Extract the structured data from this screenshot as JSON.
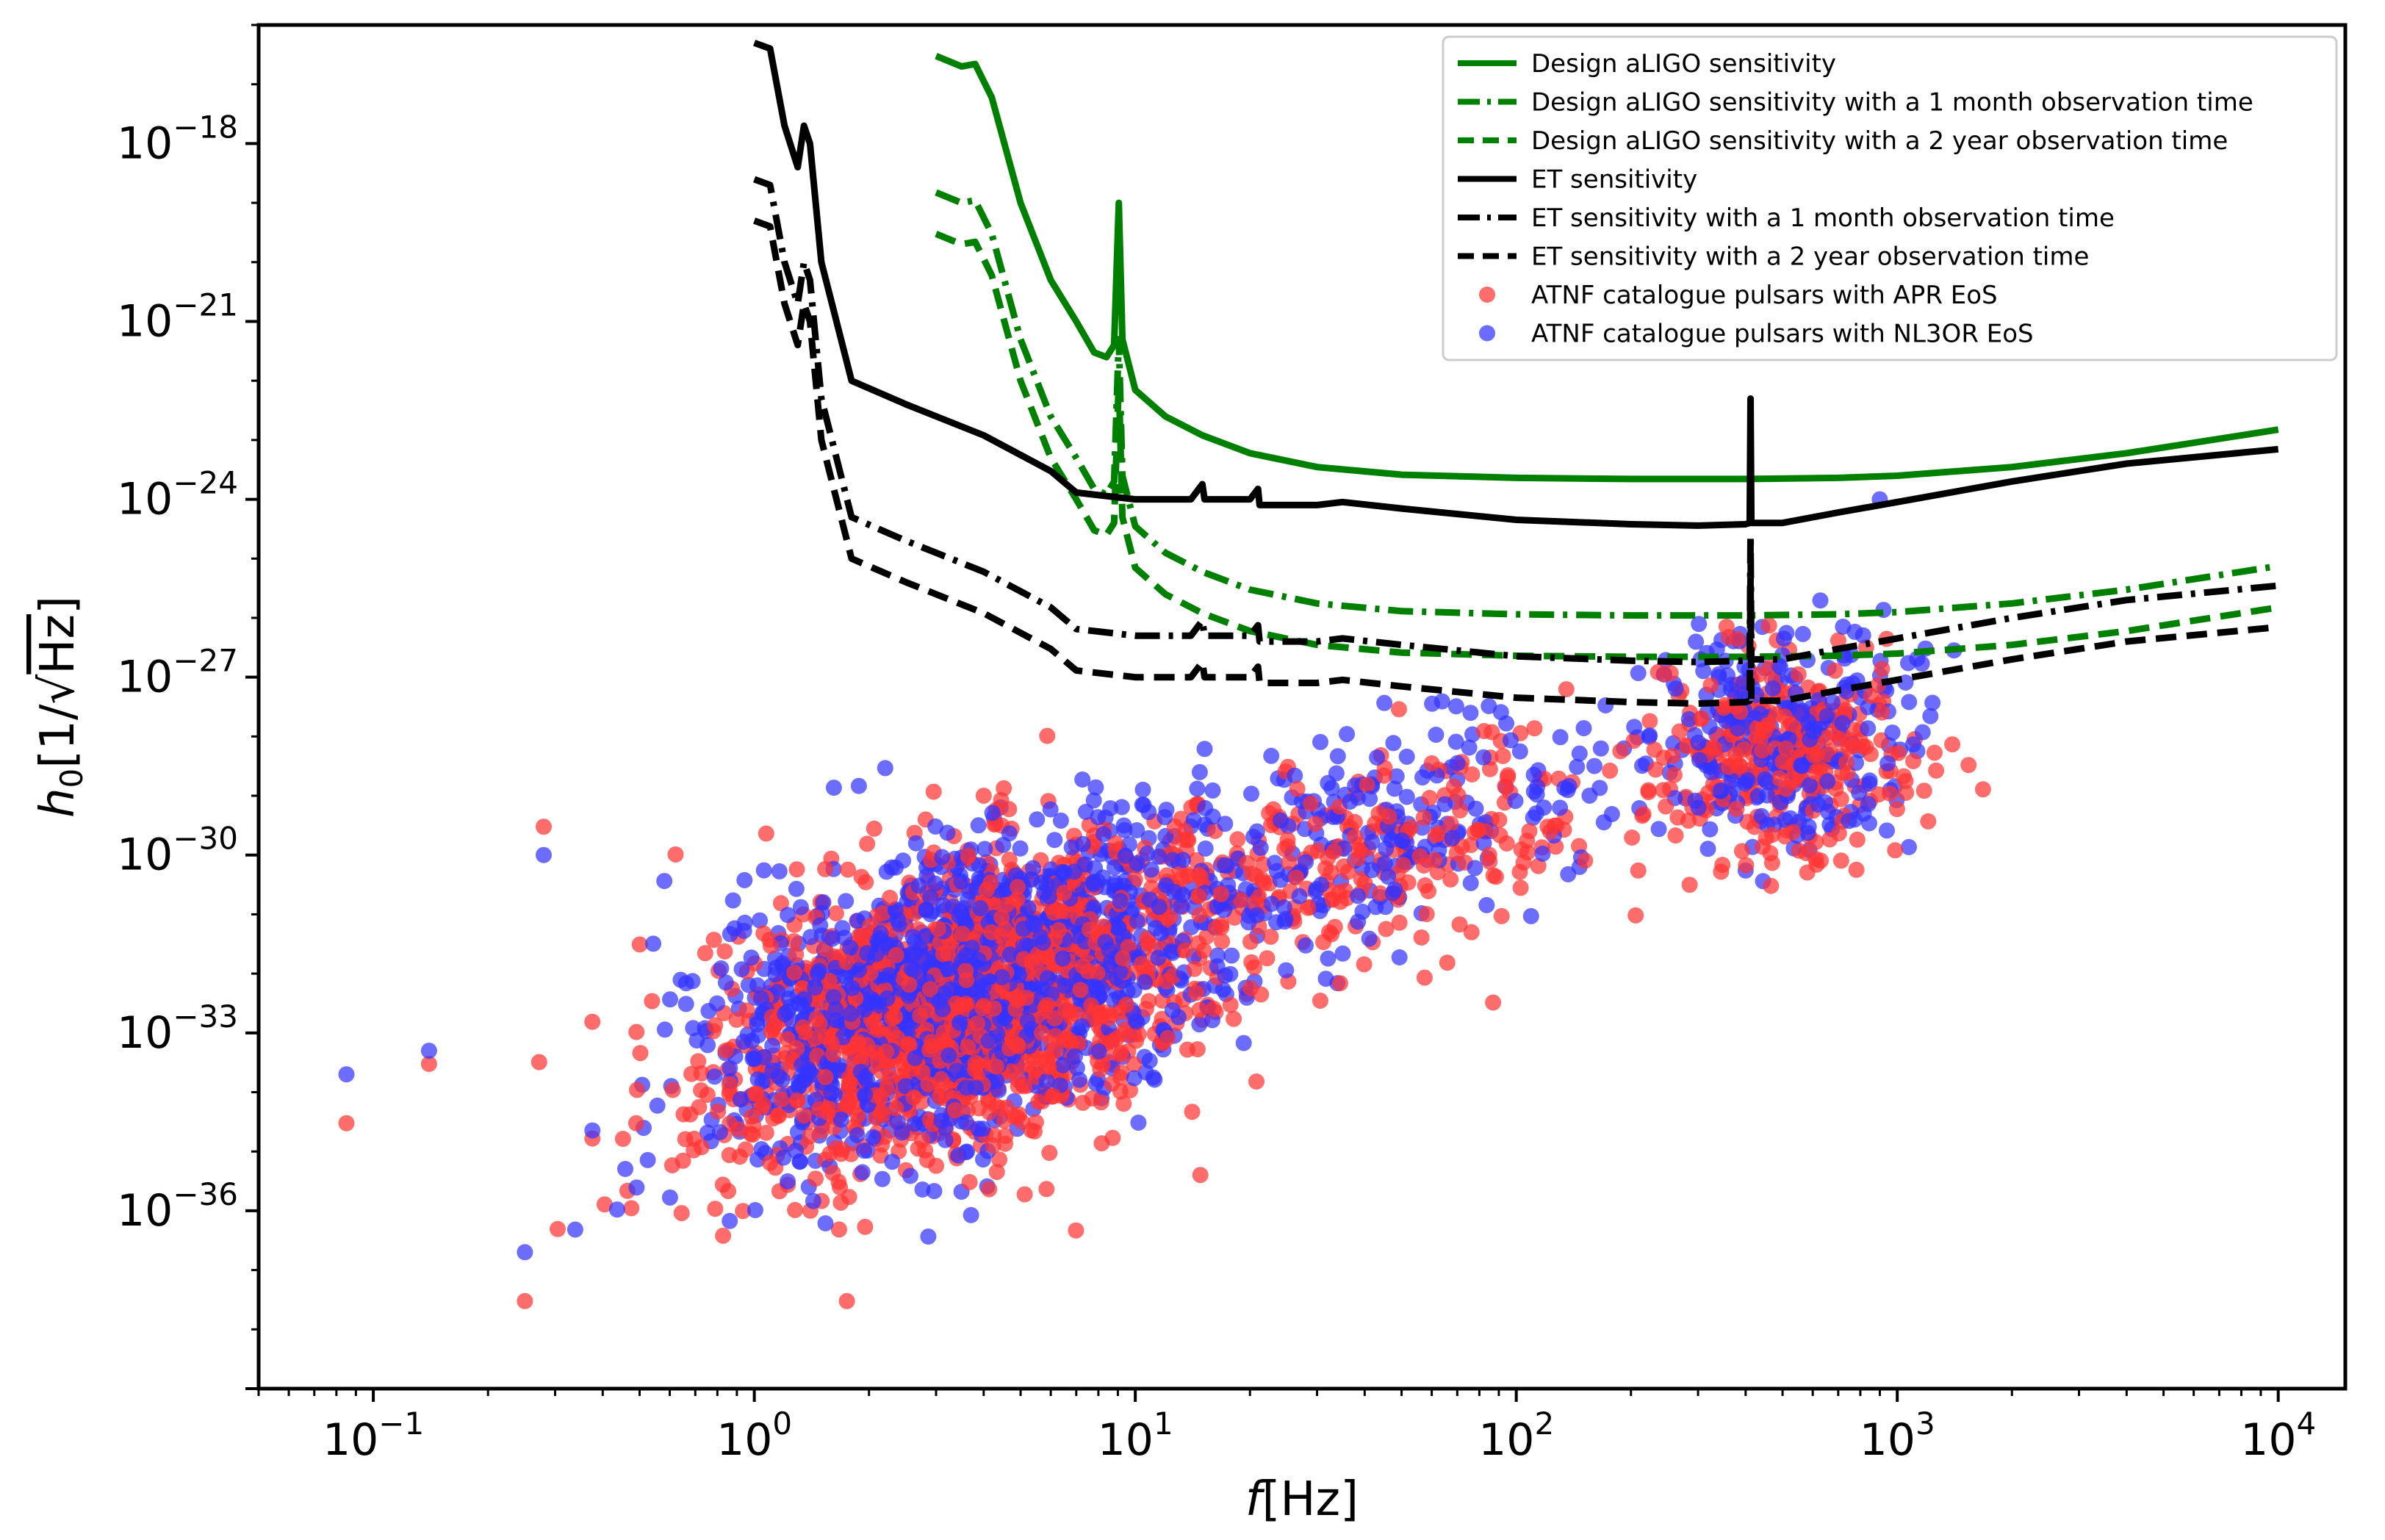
{
  "chart_data": {
    "type": "scatter",
    "xscale": "log",
    "yscale": "log",
    "xlim": [
      0.05,
      15000
    ],
    "ylim": [
      1e-39,
      1e-16
    ],
    "xlabel": {
      "main": "f",
      "unit": "[Hz]"
    },
    "ylabel": {
      "main": "h",
      "sub": "0",
      "pre": "[1/",
      "radicand": "Hz",
      "post": "]"
    },
    "xticks": [
      {
        "value": 0.1,
        "base": "10",
        "exp": "−1"
      },
      {
        "value": 1,
        "base": "10",
        "exp": "0"
      },
      {
        "value": 10,
        "base": "10",
        "exp": "1"
      },
      {
        "value": 100,
        "base": "10",
        "exp": "2"
      },
      {
        "value": 1000,
        "base": "10",
        "exp": "3"
      },
      {
        "value": 10000,
        "base": "10",
        "exp": "4"
      }
    ],
    "yticks": [
      {
        "value": 1e-18,
        "base": "10",
        "exp": "−18"
      },
      {
        "value": 1e-21,
        "base": "10",
        "exp": "−21"
      },
      {
        "value": 1e-24,
        "base": "10",
        "exp": "−24"
      },
      {
        "value": 1e-27,
        "base": "10",
        "exp": "−27"
      },
      {
        "value": 1e-30,
        "base": "10",
        "exp": "−30"
      },
      {
        "value": 1e-33,
        "base": "10",
        "exp": "−33"
      },
      {
        "value": 1e-36,
        "base": "10",
        "exp": "−36"
      }
    ],
    "legend_position": "top-right",
    "series": [
      {
        "name": "Design aLIGO sensitivity",
        "kind": "line",
        "color": "#008000",
        "dash": "solid",
        "points": [
          [
            3,
            3e-17
          ],
          [
            3.5,
            2e-17
          ],
          [
            3.8,
            2.2e-17
          ],
          [
            4.2,
            6e-18
          ],
          [
            5,
            1e-19
          ],
          [
            6,
            5e-21
          ],
          [
            7,
            1e-21
          ],
          [
            7.8,
            3e-22
          ],
          [
            8.4,
            2.5e-22
          ],
          [
            8.8,
            4e-22
          ],
          [
            9.05,
            1e-19
          ],
          [
            9.25,
            5e-22
          ],
          [
            10,
            7e-23
          ],
          [
            12,
            2.5e-23
          ],
          [
            15,
            1.2e-23
          ],
          [
            20,
            6e-24
          ],
          [
            30,
            3.5e-24
          ],
          [
            50,
            2.6e-24
          ],
          [
            100,
            2.3e-24
          ],
          [
            200,
            2.2e-24
          ],
          [
            400,
            2.2e-24
          ],
          [
            700,
            2.3e-24
          ],
          [
            1000,
            2.5e-24
          ],
          [
            2000,
            3.5e-24
          ],
          [
            4000,
            6e-24
          ],
          [
            10000,
            1.5e-23
          ]
        ]
      },
      {
        "name": "Design aLIGO sensitivity with a 1 month observation time",
        "kind": "line",
        "color": "#008000",
        "dash": "dashdot",
        "points": [
          [
            3,
            1.5e-19
          ],
          [
            3.5,
            1e-19
          ],
          [
            3.8,
            1.1e-19
          ],
          [
            4.2,
            3e-20
          ],
          [
            5,
            5e-22
          ],
          [
            6,
            2.5e-23
          ],
          [
            7,
            5e-24
          ],
          [
            7.8,
            1.5e-24
          ],
          [
            8.4,
            1.2e-24
          ],
          [
            8.8,
            2e-24
          ],
          [
            9.05,
            5e-22
          ],
          [
            9.25,
            2.5e-24
          ],
          [
            10,
            3.5e-25
          ],
          [
            12,
            1.25e-25
          ],
          [
            15,
            6e-26
          ],
          [
            20,
            3e-26
          ],
          [
            30,
            1.75e-26
          ],
          [
            50,
            1.3e-26
          ],
          [
            100,
            1.15e-26
          ],
          [
            200,
            1.1e-26
          ],
          [
            400,
            1.1e-26
          ],
          [
            700,
            1.15e-26
          ],
          [
            1000,
            1.25e-26
          ],
          [
            2000,
            1.75e-26
          ],
          [
            4000,
            3e-26
          ],
          [
            10000,
            7.5e-26
          ]
        ]
      },
      {
        "name": "Design aLIGO sensitivity with a 2 year observation time",
        "kind": "line",
        "color": "#008000",
        "dash": "dash",
        "points": [
          [
            3,
            3e-20
          ],
          [
            3.5,
            2e-20
          ],
          [
            3.8,
            2.2e-20
          ],
          [
            4.2,
            6e-21
          ],
          [
            5,
            1e-22
          ],
          [
            6,
            5e-24
          ],
          [
            7,
            1e-24
          ],
          [
            7.8,
            3e-25
          ],
          [
            8.4,
            2.5e-25
          ],
          [
            8.8,
            4e-25
          ],
          [
            9.05,
            1e-22
          ],
          [
            9.25,
            5e-25
          ],
          [
            10,
            7e-26
          ],
          [
            12,
            2.5e-26
          ],
          [
            15,
            1.2e-26
          ],
          [
            20,
            6e-27
          ],
          [
            30,
            3.5e-27
          ],
          [
            50,
            2.6e-27
          ],
          [
            100,
            2.3e-27
          ],
          [
            200,
            2.2e-27
          ],
          [
            400,
            2.2e-27
          ],
          [
            700,
            2.3e-27
          ],
          [
            1000,
            2.5e-27
          ],
          [
            2000,
            3.5e-27
          ],
          [
            4000,
            6e-27
          ],
          [
            10000,
            1.5e-26
          ]
        ]
      },
      {
        "name": "ET sensitivity",
        "kind": "line",
        "color": "#000000",
        "dash": "solid",
        "points": [
          [
            1,
            5e-17
          ],
          [
            1.1,
            4e-17
          ],
          [
            1.2,
            2e-18
          ],
          [
            1.3,
            4e-19
          ],
          [
            1.35,
            2e-18
          ],
          [
            1.4,
            1e-18
          ],
          [
            1.5,
            1e-20
          ],
          [
            1.8,
            1e-22
          ],
          [
            2.5,
            4e-23
          ],
          [
            4,
            1.2e-23
          ],
          [
            6,
            3e-24
          ],
          [
            7,
            1.3e-24
          ],
          [
            10,
            1e-24
          ],
          [
            14,
            1e-24
          ],
          [
            15,
            1.8e-24
          ],
          [
            15.2,
            1e-24
          ],
          [
            20,
            1e-24
          ],
          [
            21,
            1.5e-24
          ],
          [
            21.2,
            8e-25
          ],
          [
            30,
            8e-25
          ],
          [
            35,
            9e-25
          ],
          [
            50,
            7e-25
          ],
          [
            100,
            4.5e-25
          ],
          [
            200,
            3.8e-25
          ],
          [
            300,
            3.6e-25
          ],
          [
            400,
            3.8e-25
          ],
          [
            410,
            4e-25
          ],
          [
            412,
            5e-23
          ],
          [
            414,
            4e-25
          ],
          [
            500,
            4e-25
          ],
          [
            700,
            6e-25
          ],
          [
            1000,
            9e-25
          ],
          [
            2000,
            2e-24
          ],
          [
            4000,
            4e-24
          ],
          [
            10000,
            7e-24
          ]
        ]
      },
      {
        "name": "ET sensitivity with a 1 month observation time",
        "kind": "line",
        "color": "#000000",
        "dash": "dashdot",
        "points": [
          [
            1,
            2.5e-19
          ],
          [
            1.1,
            2e-19
          ],
          [
            1.2,
            1e-20
          ],
          [
            1.3,
            2e-21
          ],
          [
            1.35,
            1e-20
          ],
          [
            1.4,
            5e-21
          ],
          [
            1.5,
            5e-23
          ],
          [
            1.8,
            5e-25
          ],
          [
            2.5,
            2e-25
          ],
          [
            4,
            6e-26
          ],
          [
            6,
            1.5e-26
          ],
          [
            7,
            6.5e-27
          ],
          [
            10,
            5e-27
          ],
          [
            14,
            5e-27
          ],
          [
            15,
            9e-27
          ],
          [
            15.2,
            5e-27
          ],
          [
            20,
            5e-27
          ],
          [
            21,
            7.5e-27
          ],
          [
            21.2,
            4e-27
          ],
          [
            30,
            4e-27
          ],
          [
            35,
            4.5e-27
          ],
          [
            50,
            3.5e-27
          ],
          [
            100,
            2.25e-27
          ],
          [
            200,
            1.9e-27
          ],
          [
            300,
            1.8e-27
          ],
          [
            400,
            1.9e-27
          ],
          [
            410,
            2e-27
          ],
          [
            412,
            2.5e-25
          ],
          [
            414,
            2e-27
          ],
          [
            500,
            2e-27
          ],
          [
            700,
            3e-27
          ],
          [
            1000,
            4.5e-27
          ],
          [
            2000,
            1e-26
          ],
          [
            4000,
            2e-26
          ],
          [
            10000,
            3.5e-26
          ]
        ]
      },
      {
        "name": "ET sensitivity with a 2 year observation time",
        "kind": "line",
        "color": "#000000",
        "dash": "dash",
        "points": [
          [
            1,
            5e-20
          ],
          [
            1.1,
            4e-20
          ],
          [
            1.2,
            2e-21
          ],
          [
            1.3,
            4e-22
          ],
          [
            1.35,
            2e-21
          ],
          [
            1.4,
            1e-21
          ],
          [
            1.5,
            1e-23
          ],
          [
            1.8,
            1e-25
          ],
          [
            2.5,
            4e-26
          ],
          [
            4,
            1.2e-26
          ],
          [
            6,
            3e-27
          ],
          [
            7,
            1.3e-27
          ],
          [
            10,
            1e-27
          ],
          [
            14,
            1e-27
          ],
          [
            15,
            1.8e-27
          ],
          [
            15.2,
            1e-27
          ],
          [
            20,
            1e-27
          ],
          [
            21,
            1.5e-27
          ],
          [
            21.2,
            8e-28
          ],
          [
            30,
            8e-28
          ],
          [
            35,
            9e-28
          ],
          [
            50,
            7e-28
          ],
          [
            100,
            4.5e-28
          ],
          [
            200,
            3.8e-28
          ],
          [
            300,
            3.6e-28
          ],
          [
            400,
            3.8e-28
          ],
          [
            410,
            4e-28
          ],
          [
            412,
            5e-26
          ],
          [
            414,
            4e-28
          ],
          [
            500,
            4e-28
          ],
          [
            700,
            6e-28
          ],
          [
            1000,
            9e-28
          ],
          [
            2000,
            2e-27
          ],
          [
            4000,
            4e-27
          ],
          [
            10000,
            7e-27
          ]
        ]
      },
      {
        "name": "ATNF catalogue pulsars with APR EoS",
        "kind": "scatter",
        "color": "#ff3333",
        "clusters": [
          {
            "count": 1500,
            "center_x": 3.5,
            "sigma_log10_x": 0.32,
            "center_y": 3e-33,
            "sigma_log10_y": 1.2,
            "slope": 1.8
          },
          {
            "count": 250,
            "center_x": 40,
            "sigma_log10_x": 0.35,
            "center_y": 1e-30,
            "sigma_log10_y": 0.9,
            "slope": 1.8
          },
          {
            "count": 300,
            "center_x": 500,
            "sigma_log10_x": 0.17,
            "center_y": 5e-29,
            "sigma_log10_y": 0.9,
            "slope": 0
          }
        ],
        "outliers": [
          [
            0.085,
            3e-35
          ],
          [
            0.14,
            3e-34
          ],
          [
            0.25,
            3e-38
          ],
          [
            0.28,
            3e-30
          ],
          [
            1.75,
            3e-38
          ],
          [
            4,
            1e-29
          ]
        ]
      },
      {
        "name": "ATNF catalogue pulsars with NL3OR EoS",
        "kind": "scatter",
        "color": "#3333ff",
        "clusters": [
          {
            "count": 1500,
            "center_x": 3.5,
            "sigma_log10_x": 0.32,
            "center_y": 6e-33,
            "sigma_log10_y": 1.2,
            "slope": 1.8
          },
          {
            "count": 250,
            "center_x": 40,
            "sigma_log10_x": 0.35,
            "center_y": 2e-30,
            "sigma_log10_y": 0.9,
            "slope": 1.8
          },
          {
            "count": 300,
            "center_x": 500,
            "sigma_log10_x": 0.17,
            "center_y": 1e-28,
            "sigma_log10_y": 0.9,
            "slope": 0
          }
        ],
        "outliers": [
          [
            0.085,
            2e-34
          ],
          [
            0.14,
            5e-34
          ],
          [
            0.25,
            2e-37
          ],
          [
            0.28,
            1e-30
          ],
          [
            900,
            1e-24
          ]
        ]
      }
    ]
  }
}
